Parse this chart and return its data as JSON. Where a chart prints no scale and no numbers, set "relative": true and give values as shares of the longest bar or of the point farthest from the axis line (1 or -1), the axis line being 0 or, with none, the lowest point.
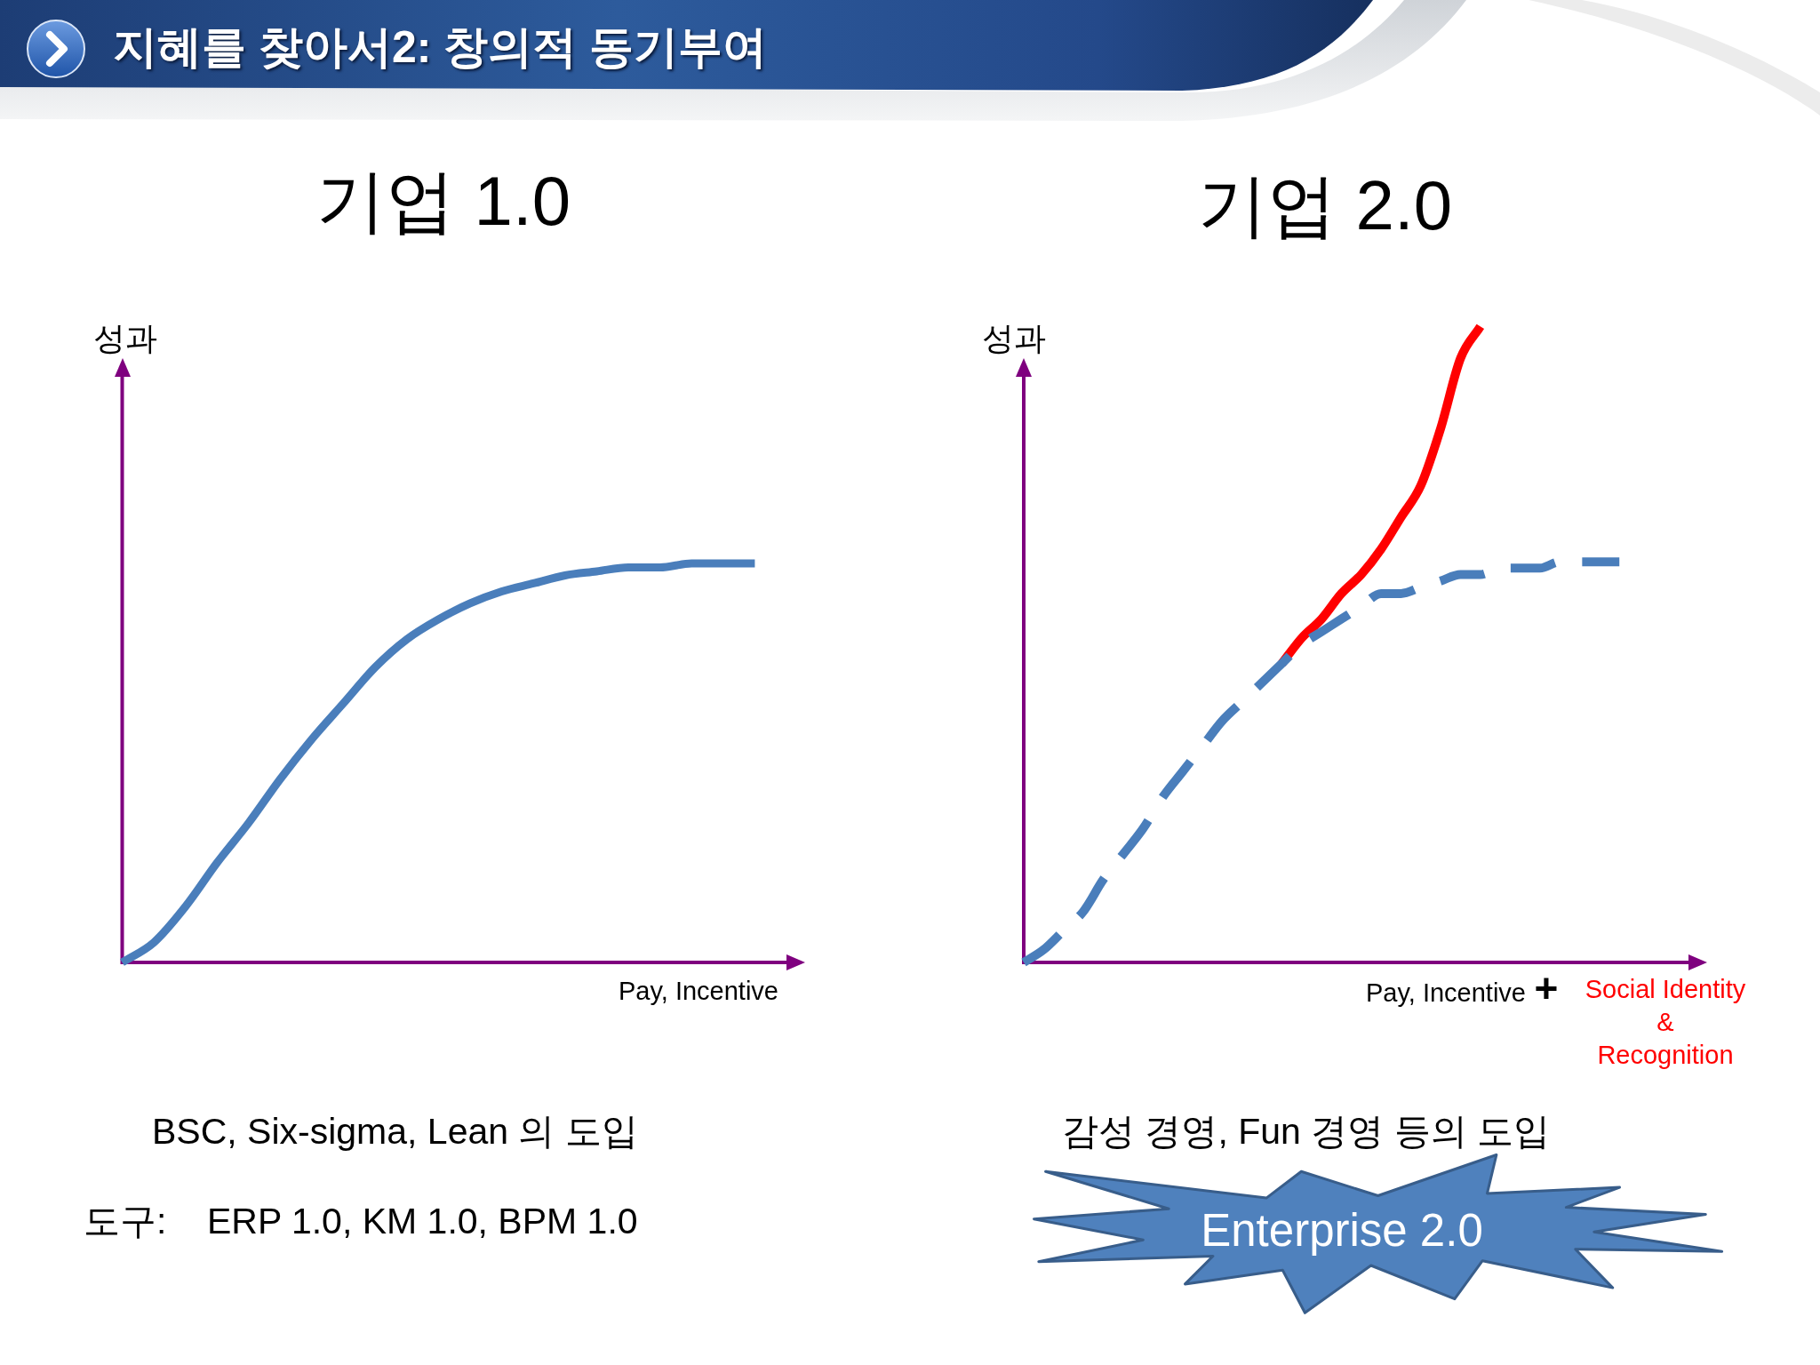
{
  "chart_data": [
    {
      "type": "other",
      "title": "지혜를 찾아서2: 창의적 동기부여"
    },
    {
      "type": "line",
      "title": "기업 1.0",
      "ylabel": "성과",
      "xlabel": "Pay, Incentive",
      "relative": true,
      "tick_labels": false,
      "marker": "none",
      "categories": [
        null,
        null,
        null,
        null,
        null,
        null,
        null,
        null,
        null,
        null,
        null,
        null,
        null,
        null,
        null,
        null,
        null,
        null,
        null,
        null,
        null,
        null
      ],
      "values": [
        0,
        0.05,
        0.14,
        0.25,
        0.35,
        0.46,
        0.56,
        0.65,
        0.74,
        0.81,
        0.86,
        0.9,
        0.93,
        0.95,
        0.97,
        0.98,
        0.99,
        0.99,
        1,
        1,
        1,
        null
      ],
      "color": "#4a7ebb",
      "annotations": [
        "BSC, Six-sigma, Lean 의 도입",
        "도구:    ERP 1.0, KM 1.0, BPM 1.0"
      ]
    },
    {
      "type": "line",
      "title": "기업 2.0",
      "ylabel": "성과",
      "xlabel": "Pay, Incentive",
      "relative": true,
      "tick_labels": false,
      "marker": "none",
      "categories": [
        null,
        null,
        null,
        null,
        null,
        null,
        null,
        null,
        null,
        null,
        null,
        null,
        null,
        null,
        null,
        null,
        null,
        null,
        null,
        null,
        null,
        null,
        null,
        null,
        null,
        null,
        null,
        null,
        null,
        null,
        null,
        null,
        null,
        null,
        null
      ],
      "series": [
        {
          "color": "#4a7ebb",
          "line_style": "dashed",
          "values": [
            0,
            0.02,
            0.05,
            0.08,
            0.13,
            0.17,
            0.21,
            0.26,
            0.3,
            0.34,
            0.38,
            0.41,
            0.44,
            0.47,
            0.5,
            0.52,
            0.54,
            0.56,
            0.58,
            0.58,
            0.59,
            0.6,
            0.61,
            0.61,
            0.62,
            0.62,
            0.62,
            0.63,
            0.63,
            0.63,
            0.63,
            null,
            null,
            null,
            null
          ]
        },
        {
          "color": "#ff0000",
          "line_style": "solid",
          "values": [
            null,
            null,
            null,
            null,
            null,
            null,
            null,
            null,
            null,
            null,
            null,
            null,
            null,
            0.47,
            0.51,
            0.54,
            0.58,
            0.61,
            0.65,
            0.7,
            0.75,
            0.84,
            0.95,
            1,
            null,
            null,
            null,
            null,
            null,
            null,
            null,
            null,
            null,
            null,
            null
          ]
        }
      ],
      "annotations": [
        "+",
        "Social Identity\n&\nRecognition",
        "감성 경영, Fun 경영 등의 도입",
        "Enterprise 2.0"
      ]
    }
  ]
}
